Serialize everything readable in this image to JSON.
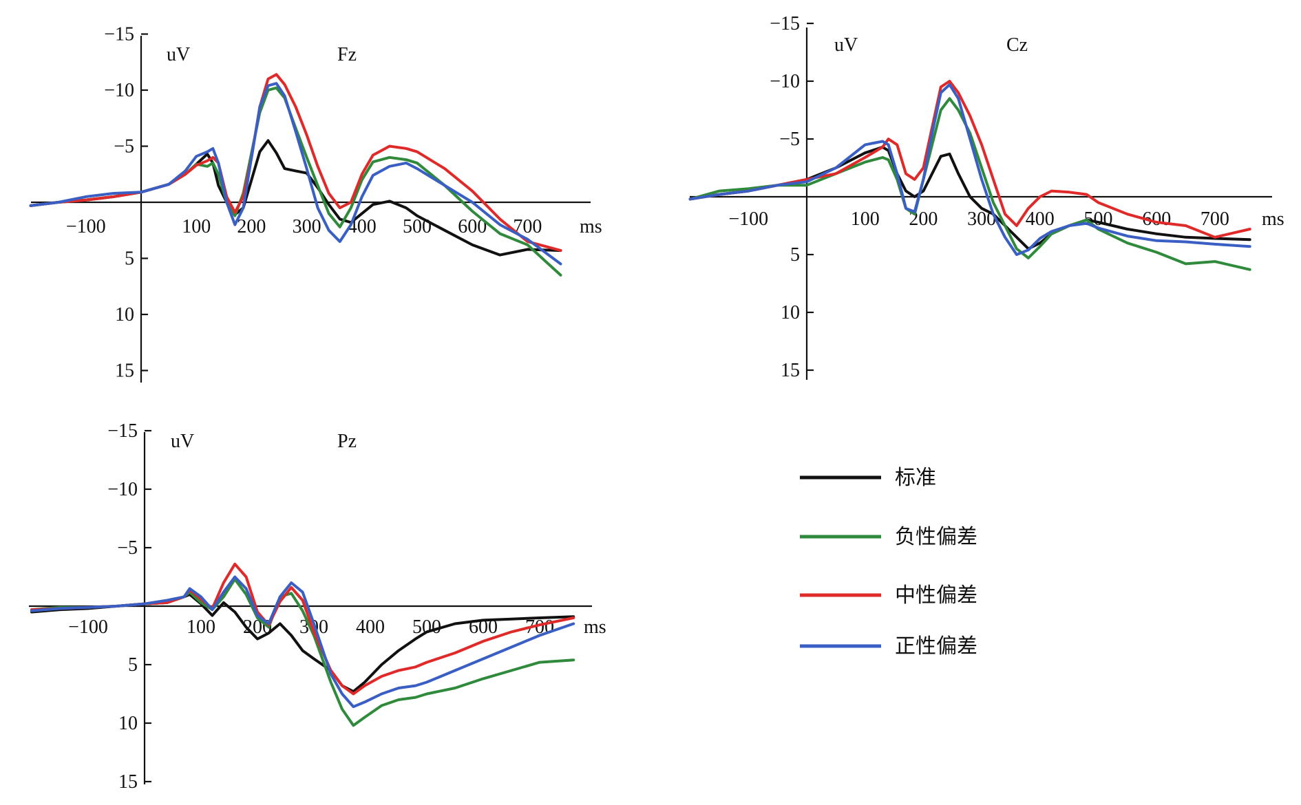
{
  "chart_data": [
    {
      "type": "line",
      "title": "Fz",
      "ylabel": "uV",
      "xlabel": "ms",
      "ylim": [
        -15,
        15
      ],
      "xlim": [
        -200,
        800
      ],
      "y_inverted": true,
      "yticks": [
        -15,
        -10,
        -5,
        5,
        10,
        15
      ],
      "yticklabels": [
        "−15",
        "−10",
        "−5",
        "5",
        "10",
        "15"
      ],
      "xticks": [
        -100,
        100,
        200,
        300,
        400,
        500,
        600,
        700
      ],
      "xticklabels": [
        "−100",
        "100",
        "200",
        "300",
        "400",
        "500",
        "600",
        "700"
      ],
      "series": [
        {
          "name": "标准",
          "color": "#111111",
          "x": [
            -200,
            -150,
            -100,
            -50,
            0,
            50,
            80,
            100,
            120,
            130,
            140,
            155,
            170,
            185,
            200,
            215,
            230,
            245,
            260,
            280,
            300,
            320,
            340,
            360,
            380,
            400,
            420,
            450,
            480,
            500,
            550,
            600,
            650,
            700,
            760
          ],
          "y": [
            0.3,
            0,
            -0.2,
            -0.5,
            -0.9,
            -1.6,
            -2.5,
            -3.4,
            -4.3,
            -3.5,
            -1.5,
            0,
            1.1,
            0.5,
            -2,
            -4.5,
            -5.5,
            -4.4,
            -3,
            -2.8,
            -2.6,
            -1.3,
            0.2,
            1.5,
            1.8,
            1,
            0.2,
            -0.1,
            0.5,
            1.2,
            2.5,
            3.8,
            4.7,
            4.2,
            4.3
          ]
        },
        {
          "name": "负性偏差",
          "color": "#2f8a3c",
          "x": [
            -200,
            -150,
            -100,
            -50,
            0,
            50,
            80,
            100,
            120,
            130,
            140,
            155,
            170,
            185,
            200,
            215,
            230,
            245,
            260,
            280,
            300,
            320,
            340,
            360,
            380,
            400,
            420,
            450,
            480,
            500,
            550,
            600,
            650,
            700,
            760
          ],
          "y": [
            0.3,
            0,
            -0.2,
            -0.5,
            -0.9,
            -1.6,
            -2.5,
            -3.4,
            -3.2,
            -3.5,
            -2.5,
            0,
            1.2,
            -0.8,
            -4.4,
            -8,
            -10,
            -10.2,
            -9.3,
            -6.6,
            -4,
            -1.5,
            1,
            2.2,
            0.5,
            -2,
            -3.6,
            -4,
            -3.8,
            -3.5,
            -1.5,
            0.8,
            2.8,
            3.8,
            6.5
          ]
        },
        {
          "name": "中性偏差",
          "color": "#e02a2a",
          "x": [
            -200,
            -150,
            -100,
            -50,
            0,
            50,
            80,
            100,
            120,
            130,
            140,
            155,
            170,
            185,
            200,
            215,
            230,
            245,
            260,
            280,
            300,
            320,
            340,
            360,
            380,
            400,
            420,
            450,
            480,
            500,
            550,
            600,
            650,
            700,
            760
          ],
          "y": [
            0.3,
            0,
            -0.2,
            -0.5,
            -0.9,
            -1.6,
            -2.5,
            -3.3,
            -3.7,
            -4,
            -3.5,
            -0.5,
            0.9,
            -0.5,
            -4,
            -8.5,
            -11,
            -11.4,
            -10.5,
            -8.5,
            -6,
            -3.2,
            -0.8,
            0.5,
            0,
            -2.5,
            -4.2,
            -5,
            -4.8,
            -4.5,
            -3,
            -1,
            1.5,
            3.5,
            4.3
          ]
        },
        {
          "name": "正性偏差",
          "color": "#3a5fc4",
          "x": [
            -200,
            -150,
            -100,
            -50,
            0,
            50,
            80,
            100,
            120,
            130,
            140,
            155,
            170,
            185,
            200,
            215,
            230,
            245,
            260,
            280,
            300,
            320,
            340,
            360,
            380,
            400,
            420,
            450,
            480,
            500,
            550,
            600,
            650,
            700,
            760
          ],
          "y": [
            0.3,
            0,
            -0.5,
            -0.8,
            -0.9,
            -1.6,
            -2.8,
            -4.1,
            -4.5,
            -4.8,
            -3.5,
            0,
            2,
            0.5,
            -4,
            -8.5,
            -10.4,
            -10.6,
            -9.5,
            -6.3,
            -3,
            0.5,
            2.5,
            3.5,
            2,
            -0.5,
            -2.4,
            -3.2,
            -3.5,
            -3,
            -1.5,
            0,
            2,
            3.3,
            5.5
          ]
        }
      ],
      "legend": "shared"
    },
    {
      "type": "line",
      "title": "Cz",
      "ylabel": "uV",
      "xlabel": "ms",
      "ylim": [
        -15,
        15
      ],
      "xlim": [
        -200,
        800
      ],
      "y_inverted": true,
      "yticks": [
        -15,
        -10,
        -5,
        5,
        10,
        15
      ],
      "yticklabels": [
        "−15",
        "−10",
        "−5",
        "5",
        "10",
        "15"
      ],
      "xticks": [
        -100,
        100,
        200,
        300,
        400,
        500,
        600,
        700
      ],
      "xticklabels": [
        "−100",
        "100",
        "200",
        "300",
        "400",
        "500",
        "600",
        "700"
      ],
      "series": [
        {
          "name": "标准",
          "color": "#111111",
          "x": [
            -200,
            -150,
            -100,
            -50,
            0,
            50,
            100,
            130,
            140,
            155,
            170,
            185,
            200,
            215,
            230,
            245,
            260,
            280,
            300,
            320,
            340,
            360,
            380,
            400,
            420,
            450,
            480,
            500,
            550,
            600,
            650,
            700,
            760
          ],
          "y": [
            0.2,
            -0.2,
            -0.5,
            -1,
            -1.5,
            -2.5,
            -3.8,
            -4.3,
            -4,
            -2,
            -0.5,
            0,
            -0.5,
            -2,
            -3.5,
            -3.7,
            -2,
            0,
            1,
            1.5,
            2.5,
            3.5,
            4.5,
            4,
            3.2,
            2.5,
            2,
            2.2,
            2.8,
            3.2,
            3.5,
            3.6,
            3.7
          ]
        },
        {
          "name": "负性偏差",
          "color": "#2f8a3c",
          "x": [
            -200,
            -150,
            -100,
            -50,
            0,
            50,
            100,
            130,
            140,
            155,
            170,
            185,
            200,
            215,
            230,
            245,
            260,
            280,
            300,
            320,
            340,
            360,
            380,
            400,
            420,
            450,
            480,
            500,
            550,
            600,
            650,
            700,
            760
          ],
          "y": [
            0.2,
            -0.5,
            -0.7,
            -1,
            -1,
            -2,
            -3,
            -3.4,
            -3.2,
            -1.5,
            1,
            1.5,
            -1.5,
            -4.5,
            -7.5,
            -8.5,
            -7.5,
            -5.5,
            -2.5,
            0.5,
            2.5,
            4.5,
            5.3,
            4.3,
            3.2,
            2.5,
            2,
            2.8,
            4,
            4.8,
            5.8,
            5.6,
            6.3
          ]
        },
        {
          "name": "中性偏差",
          "color": "#e02a2a",
          "x": [
            -200,
            -150,
            -100,
            -50,
            0,
            50,
            100,
            130,
            140,
            155,
            170,
            185,
            200,
            215,
            230,
            245,
            260,
            280,
            300,
            320,
            340,
            360,
            380,
            400,
            420,
            450,
            480,
            500,
            550,
            600,
            650,
            700,
            760
          ],
          "y": [
            0.2,
            -0.2,
            -0.5,
            -1,
            -1.5,
            -2,
            -3.4,
            -4.3,
            -5,
            -4.5,
            -2,
            -1.5,
            -2.5,
            -6,
            -9.5,
            -10,
            -9,
            -7,
            -4.5,
            -1.5,
            1.5,
            2.5,
            1,
            0,
            -0.5,
            -0.4,
            -0.2,
            0.5,
            1.5,
            2.2,
            2.5,
            3.5,
            2.8
          ]
        },
        {
          "name": "正性偏差",
          "color": "#3a5fc4",
          "x": [
            -200,
            -150,
            -100,
            -50,
            0,
            50,
            100,
            130,
            140,
            155,
            170,
            185,
            200,
            215,
            230,
            245,
            260,
            280,
            300,
            320,
            340,
            360,
            380,
            400,
            420,
            450,
            480,
            500,
            550,
            600,
            650,
            700,
            760
          ],
          "y": [
            0.2,
            -0.2,
            -0.5,
            -1,
            -1.3,
            -2.5,
            -4.5,
            -4.8,
            -4.5,
            -2,
            1,
            1.3,
            -1.5,
            -5.5,
            -9,
            -9.7,
            -8.5,
            -5,
            -1.5,
            1.5,
            3.5,
            5,
            4.6,
            3.6,
            3,
            2.5,
            2.3,
            2.7,
            3.4,
            3.8,
            3.9,
            4.1,
            4.3
          ]
        }
      ],
      "legend": "shared"
    },
    {
      "type": "line",
      "title": "Pz",
      "ylabel": "uV",
      "xlabel": "ms",
      "ylim": [
        -15,
        15
      ],
      "xlim": [
        -200,
        800
      ],
      "y_inverted": true,
      "yticks": [
        -15,
        -10,
        -5,
        5,
        10,
        15
      ],
      "yticklabels": [
        "−15",
        "−10",
        "−5",
        "5",
        "10",
        "15"
      ],
      "xticks": [
        -100,
        100,
        200,
        300,
        400,
        500,
        600,
        700
      ],
      "xticklabels": [
        "−100",
        "100",
        "200",
        "300",
        "400",
        "500",
        "600",
        "700"
      ],
      "series": [
        {
          "name": "标准",
          "color": "#111111",
          "x": [
            -200,
            -150,
            -100,
            -50,
            0,
            40,
            70,
            80,
            100,
            120,
            140,
            160,
            180,
            200,
            220,
            240,
            260,
            280,
            300,
            330,
            350,
            370,
            390,
            420,
            450,
            480,
            500,
            550,
            600,
            650,
            700,
            760
          ],
          "y": [
            0.5,
            0.3,
            0.2,
            0,
            -0.2,
            -0.3,
            -0.8,
            -1,
            -0.2,
            0.8,
            -0.3,
            0.5,
            1.8,
            2.8,
            2.3,
            1.5,
            2.5,
            3.8,
            4.5,
            5.5,
            6.8,
            7.3,
            6.5,
            5,
            3.8,
            2.8,
            2.2,
            1.5,
            1.2,
            1.1,
            1,
            0.9
          ]
        },
        {
          "name": "负性偏差",
          "color": "#2f8a3c",
          "x": [
            -200,
            -150,
            -100,
            -50,
            0,
            40,
            70,
            80,
            100,
            120,
            140,
            160,
            180,
            200,
            220,
            240,
            260,
            280,
            300,
            330,
            350,
            370,
            390,
            420,
            450,
            480,
            500,
            550,
            600,
            650,
            700,
            760
          ],
          "y": [
            0.3,
            0.1,
            0.1,
            0,
            -0.2,
            -0.3,
            -0.8,
            -1.2,
            -0.3,
            0.3,
            -0.8,
            -2.3,
            -1,
            1,
            1.8,
            -0.8,
            -1.1,
            0.4,
            2.5,
            6.5,
            8.8,
            10.2,
            9.5,
            8.5,
            8,
            7.8,
            7.5,
            7,
            6.2,
            5.5,
            4.8,
            4.6
          ]
        },
        {
          "name": "中性偏差",
          "color": "#e02a2a",
          "x": [
            -200,
            -150,
            -100,
            -50,
            0,
            40,
            70,
            80,
            100,
            120,
            140,
            160,
            180,
            200,
            220,
            240,
            260,
            280,
            300,
            330,
            350,
            370,
            390,
            420,
            450,
            480,
            500,
            550,
            600,
            650,
            700,
            760
          ],
          "y": [
            0.3,
            0.2,
            0.1,
            0,
            -0.2,
            -0.3,
            -0.8,
            -1.4,
            -0.6,
            0.2,
            -2,
            -3.6,
            -2.5,
            0.5,
            1.6,
            -0.4,
            -1.6,
            -0.5,
            2.2,
            5.5,
            6.8,
            7.5,
            6.8,
            6,
            5.5,
            5.2,
            4.8,
            4,
            3,
            2.2,
            1.6,
            1
          ]
        },
        {
          "name": "正性偏差",
          "color": "#3a5fc4",
          "x": [
            -200,
            -150,
            -100,
            -50,
            0,
            40,
            70,
            80,
            100,
            120,
            140,
            160,
            180,
            200,
            220,
            240,
            260,
            280,
            300,
            330,
            350,
            370,
            390,
            420,
            450,
            480,
            500,
            550,
            600,
            650,
            700,
            760
          ],
          "y": [
            0.4,
            0.2,
            0.1,
            0,
            -0.2,
            -0.5,
            -0.8,
            -1.5,
            -0.8,
            0.3,
            -1.2,
            -2.5,
            -1.5,
            0.8,
            1.5,
            -0.8,
            -2,
            -1.2,
            1.5,
            5.8,
            7.5,
            8.6,
            8.2,
            7.5,
            7,
            6.8,
            6.5,
            5.5,
            4.5,
            3.5,
            2.5,
            1.5
          ]
        }
      ],
      "legend": "shared"
    }
  ],
  "legend": {
    "items": [
      {
        "label": "标准",
        "color": "#111111"
      },
      {
        "label": "负性偏差",
        "color": "#2f8a3c"
      },
      {
        "label": "中性偏差",
        "color": "#e02a2a"
      },
      {
        "label": "正性偏差",
        "color": "#3a5fc4"
      }
    ]
  }
}
